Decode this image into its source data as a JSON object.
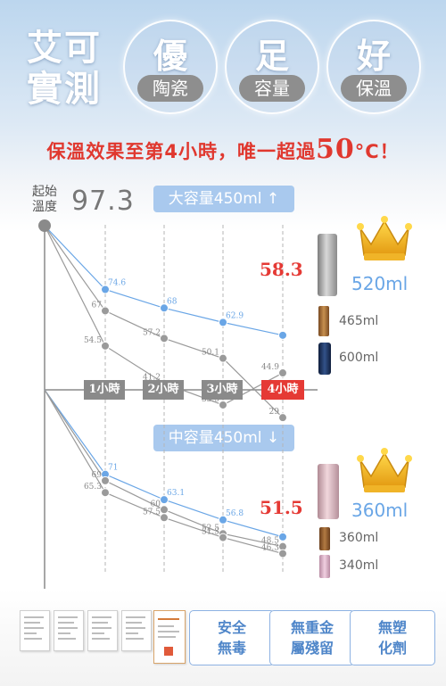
{
  "header": {
    "left_title_line1": "艾可",
    "left_title_line2": "實測",
    "badges": [
      {
        "big": "優",
        "small": "陶瓷"
      },
      {
        "big": "足",
        "small": "容量"
      },
      {
        "big": "好",
        "small": "保溫"
      }
    ],
    "subtitle_prefix": "保溫效果至第4小時，唯一超過",
    "subtitle_number": "50",
    "subtitle_suffix": "°C！"
  },
  "start": {
    "label_line1": "起始",
    "label_line2": "溫度",
    "value": "97.3"
  },
  "features": [
    "安全\n無毒",
    "無重金\n屬殘留",
    "無塑\n化劑"
  ],
  "colors": {
    "blue": "#6aa6e6",
    "gray": "#9a9a9a",
    "red": "#e53a35",
    "pill": "#a9c9ee"
  },
  "chart_data": [
    {
      "type": "line",
      "title": "大容量450ml ↑",
      "categories": [
        "1小時",
        "2小時",
        "3小時",
        "4小時"
      ],
      "start_value": 97.3,
      "series": [
        {
          "name": "520ml",
          "values": [
            74.6,
            68,
            62.9,
            58.3
          ],
          "final_label": "58.3",
          "color": "#6aa6e6"
        },
        {
          "name": "465ml",
          "values": [
            67,
            57.2,
            50.1,
            29
          ],
          "color": "#9a9a9a"
        },
        {
          "name": "600ml",
          "values": [
            54.5,
            41.2,
            33.5,
            44.9
          ],
          "color": "#9a9a9a"
        }
      ],
      "point_labels": [
        [
          "74.6",
          "68",
          "62.9",
          ""
        ],
        [
          "67",
          "57.2",
          "50.1",
          "29"
        ],
        [
          "54.5",
          "41.2",
          "33.5",
          "44.9"
        ]
      ]
    },
    {
      "type": "line",
      "title": "中容量450ml ↓",
      "categories": [
        "1小時",
        "2小時",
        "3小時",
        "4小時"
      ],
      "start_value": 97.3,
      "series": [
        {
          "name": "360ml",
          "values": [
            71,
            63.1,
            56.8,
            51.5
          ],
          "final_label": "51.5",
          "color": "#6aa6e6"
        },
        {
          "name": "360ml",
          "values": [
            69,
            60,
            52.5,
            48.5
          ],
          "color": "#9a9a9a"
        },
        {
          "name": "340ml",
          "values": [
            65.3,
            57.5,
            51.3,
            46.3
          ],
          "color": "#9a9a9a"
        }
      ],
      "point_labels": [
        [
          "71",
          "63.1",
          "56.8",
          ""
        ],
        [
          "69",
          "60",
          "52.5",
          "48.5"
        ],
        [
          "65.3",
          "57.5",
          "51.3",
          "46.3"
        ]
      ]
    }
  ]
}
